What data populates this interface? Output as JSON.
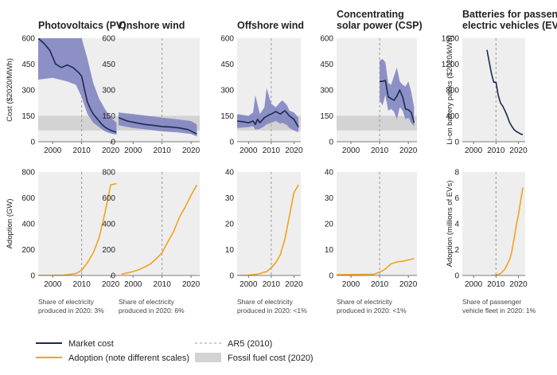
{
  "figure": {
    "cost_ylabel_common": "Cost ($2020/MWh)",
    "cost_ylabel_ev": "Li-on battery packs ($2020/kWh)",
    "adoption_ylabel_common": "Adoption (GW)",
    "adoption_ylabel_ev": "Adoption (millions of EVs)"
  },
  "legend": {
    "market_cost": "Market cost",
    "adoption": "Adoption (note different scales)",
    "ar5": "AR5 (2010)",
    "fossil": "Fossil fuel cost (2020)"
  },
  "colors": {
    "market_cost": "#1b2a4e",
    "band": "#7b7fbf",
    "adoption": "#f2a21c",
    "fossil_band": "#d3d3d3",
    "plot_bg": "#eeeeee",
    "ar5_line": "#999999"
  },
  "chart_data": [
    {
      "type": "line",
      "panel": "pv-cost",
      "title": "Photovoltaics (PV)",
      "ylabel": "Cost ($2020/MWh)",
      "xlim": [
        1995,
        2023
      ],
      "ylim": [
        0,
        600
      ],
      "yticks": [
        0,
        150,
        300,
        450,
        600
      ],
      "xticks": [
        2000,
        2010,
        2020
      ],
      "ar5_year": 2010,
      "fossil_band": [
        65,
        150
      ],
      "series": [
        {
          "x": [
            1995,
            1997,
            1999,
            2001,
            2003,
            2005,
            2007,
            2009,
            2010,
            2011,
            2012,
            2013,
            2014,
            2015,
            2016,
            2017,
            2018,
            2019,
            2020,
            2021,
            2022
          ],
          "y": [
            600,
            570,
            530,
            450,
            430,
            445,
            430,
            400,
            380,
            300,
            230,
            190,
            160,
            140,
            120,
            100,
            85,
            75,
            66,
            60,
            55
          ]
        }
      ],
      "band": {
        "x": [
          1995,
          2000,
          2005,
          2008,
          2010,
          2012,
          2014,
          2016,
          2018,
          2020,
          2022
        ],
        "lower": [
          360,
          370,
          350,
          330,
          260,
          160,
          110,
          85,
          60,
          48,
          40
        ],
        "upper": [
          600,
          600,
          600,
          600,
          600,
          480,
          340,
          250,
          190,
          140,
          110
        ]
      }
    },
    {
      "type": "line",
      "panel": "onshore-cost",
      "title": "Onshore wind",
      "xlim": [
        1995,
        2023
      ],
      "ylim": [
        0,
        600
      ],
      "yticks": [
        0,
        150,
        300,
        450,
        600
      ],
      "xticks": [
        2000,
        2010,
        2020
      ],
      "ar5_year": 2010,
      "fossil_band": [
        65,
        150
      ],
      "series": [
        {
          "x": [
            1995,
            1998,
            2001,
            2004,
            2007,
            2010,
            2013,
            2016,
            2019,
            2022
          ],
          "y": [
            140,
            120,
            110,
            100,
            95,
            88,
            85,
            80,
            70,
            45
          ]
        }
      ],
      "band": {
        "x": [
          1995,
          2000,
          2005,
          2010,
          2015,
          2020,
          2022
        ],
        "lower": [
          95,
          80,
          70,
          60,
          55,
          45,
          30
        ],
        "upper": [
          170,
          160,
          150,
          140,
          130,
          120,
          100
        ]
      }
    },
    {
      "type": "line",
      "panel": "offshore-cost",
      "title": "Offshore wind",
      "xlim": [
        1995,
        2023
      ],
      "ylim": [
        0,
        600
      ],
      "yticks": [
        0,
        150,
        300,
        450,
        600
      ],
      "xticks": [
        2000,
        2010,
        2020
      ],
      "ar5_year": 2010,
      "fossil_band": [
        65,
        150
      ],
      "series": [
        {
          "x": [
            1995,
            1998,
            2000,
            2002,
            2003,
            2004,
            2005,
            2007,
            2009,
            2010,
            2012,
            2014,
            2016,
            2018,
            2020,
            2022
          ],
          "y": [
            120,
            115,
            110,
            120,
            100,
            130,
            110,
            140,
            155,
            160,
            175,
            160,
            180,
            150,
            130,
            85
          ]
        }
      ],
      "band": {
        "x": [
          1995,
          2000,
          2002,
          2003,
          2005,
          2007,
          2008,
          2010,
          2012,
          2014,
          2015,
          2017,
          2018,
          2020,
          2022
        ],
        "lower": [
          80,
          85,
          90,
          70,
          75,
          90,
          100,
          110,
          120,
          105,
          110,
          95,
          80,
          65,
          55
        ],
        "upper": [
          160,
          150,
          170,
          270,
          160,
          200,
          310,
          220,
          200,
          230,
          240,
          210,
          180,
          170,
          140
        ]
      }
    },
    {
      "type": "line",
      "panel": "csp-cost",
      "title": "Concentrating solar power (CSP)",
      "xlim": [
        1995,
        2023
      ],
      "ylim": [
        0,
        600
      ],
      "yticks": [
        0,
        150,
        300,
        450,
        600
      ],
      "xticks": [
        2000,
        2010,
        2020
      ],
      "ar5_year": 2010,
      "fossil_band": [
        65,
        150
      ],
      "series": [
        {
          "x": [
            2010,
            2011,
            2012,
            2013,
            2014,
            2015,
            2016,
            2017,
            2018,
            2019,
            2020,
            2021,
            2022
          ],
          "y": [
            350,
            350,
            355,
            260,
            250,
            240,
            265,
            300,
            260,
            190,
            185,
            170,
            110
          ]
        }
      ],
      "band": {
        "x": [
          2010,
          2011,
          2012,
          2013,
          2014,
          2015,
          2016,
          2017,
          2018,
          2019,
          2020,
          2021,
          2022
        ],
        "lower": [
          240,
          210,
          270,
          180,
          190,
          175,
          130,
          200,
          180,
          130,
          140,
          110,
          90
        ],
        "upper": [
          470,
          480,
          460,
          340,
          330,
          380,
          430,
          350,
          330,
          320,
          350,
          290,
          200
        ]
      }
    },
    {
      "type": "line",
      "panel": "ev-cost",
      "title": "Batteries for passenger electric vehicles (EVs)",
      "ylabel": "Li-on battery packs ($2020/kWh)",
      "xlim": [
        1995,
        2023
      ],
      "ylim": [
        0,
        1600
      ],
      "yticks": [
        0,
        400,
        800,
        1200,
        1600
      ],
      "xticks": [
        2000,
        2010,
        2020
      ],
      "ar5_year": 2010,
      "series": [
        {
          "x": [
            2006,
            2007,
            2008,
            2009,
            2010,
            2011,
            2012,
            2013,
            2014,
            2015,
            2016,
            2017,
            2018,
            2019,
            2020,
            2021,
            2022
          ],
          "y": [
            1420,
            1230,
            1050,
            920,
            920,
            720,
            600,
            550,
            480,
            400,
            300,
            240,
            190,
            160,
            140,
            120,
            110
          ]
        }
      ]
    },
    {
      "type": "line",
      "panel": "pv-adoption",
      "ylabel": "Adoption (GW)",
      "xlim": [
        1995,
        2023
      ],
      "ylim": [
        0,
        800
      ],
      "yticks": [
        0,
        200,
        400,
        600,
        800
      ],
      "xticks": [
        2000,
        2010,
        2020
      ],
      "ar5_year": 2010,
      "footnote": "Share of electricity produced in 2020: 3%",
      "series": [
        {
          "x": [
            1995,
            2000,
            2004,
            2008,
            2010,
            2012,
            2014,
            2016,
            2018,
            2020,
            2022
          ],
          "y": [
            0,
            1,
            3,
            15,
            40,
            100,
            175,
            290,
            480,
            700,
            710
          ]
        }
      ]
    },
    {
      "type": "line",
      "panel": "onshore-adoption",
      "xlim": [
        1995,
        2023
      ],
      "ylim": [
        0,
        800
      ],
      "yticks": [
        0,
        200,
        400,
        600,
        800
      ],
      "xticks": [
        2000,
        2010,
        2020
      ],
      "ar5_year": 2010,
      "footnote": "Share of electricity produced in 2020: 6%",
      "series": [
        {
          "x": [
            1996,
            1998,
            2000,
            2002,
            2004,
            2006,
            2008,
            2010,
            2012,
            2014,
            2016,
            2018,
            2020,
            2022
          ],
          "y": [
            10,
            20,
            30,
            45,
            65,
            90,
            130,
            175,
            260,
            340,
            450,
            530,
            620,
            700
          ]
        }
      ]
    },
    {
      "type": "line",
      "panel": "offshore-adoption",
      "xlim": [
        1995,
        2023
      ],
      "ylim": [
        0,
        40
      ],
      "yticks": [
        0,
        10,
        20,
        30,
        40
      ],
      "xticks": [
        2000,
        2010,
        2020
      ],
      "ar5_year": 2010,
      "footnote": "Share of electricity produced in 2020: <1%",
      "series": [
        {
          "x": [
            1995,
            2000,
            2004,
            2008,
            2010,
            2012,
            2014,
            2016,
            2018,
            2020,
            2022
          ],
          "y": [
            0,
            0.1,
            0.5,
            1.5,
            3,
            5,
            8,
            14,
            23,
            32,
            35
          ]
        }
      ]
    },
    {
      "type": "line",
      "panel": "csp-adoption",
      "xlim": [
        1995,
        2023
      ],
      "ylim": [
        0,
        40
      ],
      "yticks": [
        0,
        10,
        20,
        30,
        40
      ],
      "xticks": [
        2000,
        2010,
        2020
      ],
      "ar5_year": 2010,
      "footnote": "Share of electricity produced in 2020: <1%",
      "series": [
        {
          "x": [
            1995,
            2004,
            2008,
            2010,
            2012,
            2014,
            2016,
            2018,
            2020,
            2022
          ],
          "y": [
            0.3,
            0.4,
            0.5,
            1.3,
            2.5,
            4.5,
            5.2,
            5.5,
            6,
            6.5
          ]
        }
      ]
    },
    {
      "type": "line",
      "panel": "ev-adoption",
      "ylabel": "Adoption (millions of EVs)",
      "xlim": [
        1995,
        2023
      ],
      "ylim": [
        0,
        8
      ],
      "yticks": [
        0,
        2,
        4,
        6,
        8
      ],
      "xticks": [
        2000,
        2010,
        2020
      ],
      "ar5_year": 2010,
      "footnote": "Share of passenger vehicle fleet in 2020: 1%",
      "series": [
        {
          "x": [
            2008,
            2010,
            2012,
            2014,
            2016,
            2017,
            2018,
            2019,
            2020,
            2021,
            2022
          ],
          "y": [
            0,
            0.02,
            0.15,
            0.5,
            1.2,
            1.8,
            2.8,
            3.8,
            4.7,
            5.8,
            6.8
          ]
        }
      ]
    }
  ]
}
